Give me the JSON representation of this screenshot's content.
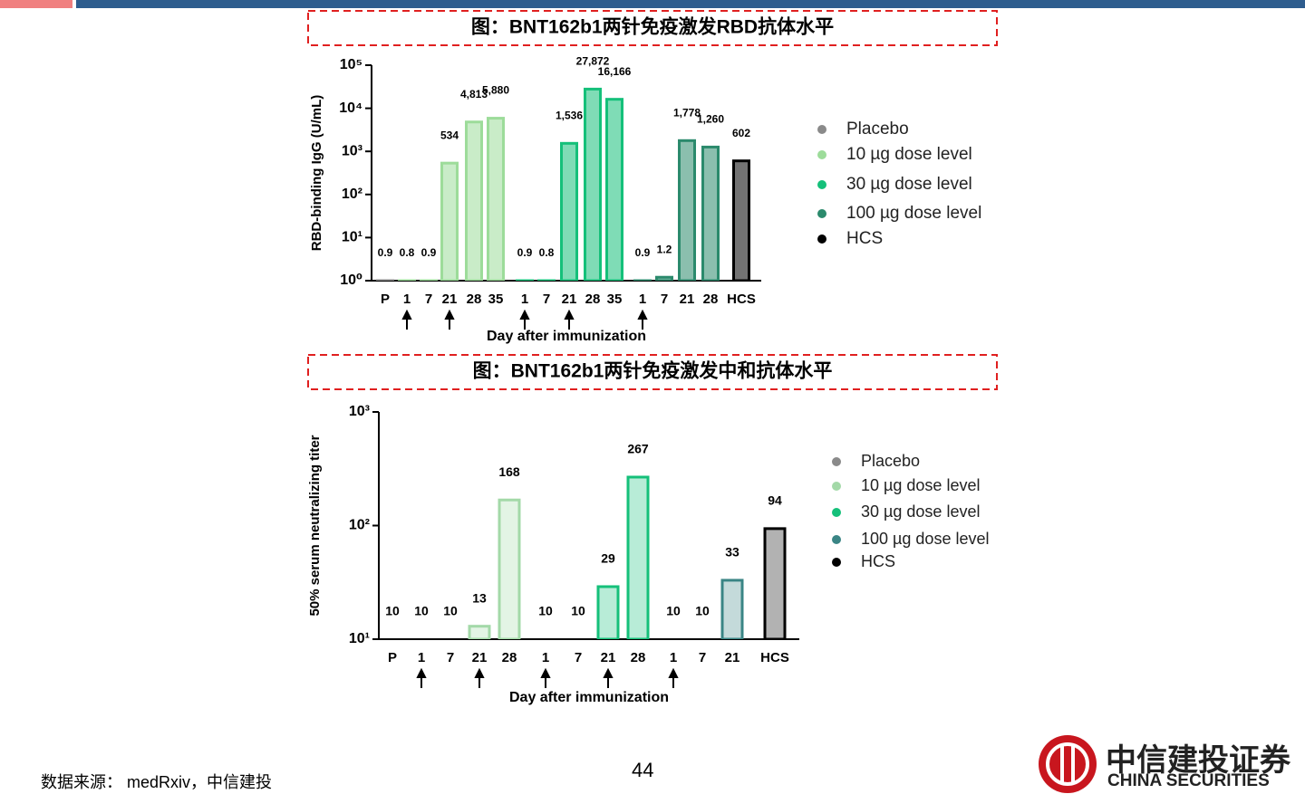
{
  "chart_data": [
    {
      "type": "bar",
      "title": "图：BNT162b1两针免疫激发RBD抗体水平",
      "y_label": "RBD-binding IgG (U/mL)",
      "x_label": "Day after immunization",
      "log": true,
      "ylim": [
        1,
        100000
      ],
      "yticks": [
        {
          "value": 1,
          "label": "10⁰"
        },
        {
          "value": 10,
          "label": "10¹"
        },
        {
          "value": 100,
          "label": "10²"
        },
        {
          "value": 1000,
          "label": "10³"
        },
        {
          "value": 10000,
          "label": "10⁴"
        },
        {
          "value": 100000,
          "label": "10⁵"
        }
      ],
      "categories": [
        "P",
        "1",
        "7",
        "21",
        "28",
        "35",
        "1",
        "7",
        "21",
        "28",
        "35",
        "1",
        "7",
        "21",
        "28",
        "HCS"
      ],
      "series": [
        {
          "name": "Placebo",
          "color": "#8a8a8a",
          "values": [
            0.9,
            null,
            null,
            null,
            null,
            null,
            null,
            null,
            null,
            null,
            null,
            null,
            null,
            null,
            null,
            null
          ]
        },
        {
          "name": "10 µg dose level",
          "color": "#9ddc9a",
          "values": [
            null,
            0.8,
            0.9,
            534,
            4813,
            5880,
            null,
            null,
            null,
            null,
            null,
            null,
            null,
            null,
            null,
            null
          ],
          "value_labels": [
            null,
            null,
            null,
            null,
            "4,813",
            "5,880",
            null,
            null,
            null,
            null,
            null,
            null,
            null,
            null,
            null,
            null
          ]
        },
        {
          "name": "30 µg dose level",
          "color": "#15c07a",
          "values": [
            null,
            null,
            null,
            null,
            null,
            null,
            0.9,
            0.8,
            1536,
            27872,
            16166,
            null,
            null,
            null,
            null,
            null
          ],
          "value_labels": [
            null,
            null,
            null,
            null,
            null,
            null,
            null,
            null,
            "1,536",
            "27,872",
            "16,166",
            null,
            null,
            null,
            null,
            null
          ]
        },
        {
          "name": "100 µg dose level",
          "color": "#2b8a6c",
          "values": [
            null,
            null,
            null,
            null,
            null,
            null,
            null,
            null,
            null,
            null,
            null,
            0.9,
            1.2,
            1778,
            1260,
            null
          ],
          "value_labels": [
            null,
            null,
            null,
            null,
            null,
            null,
            null,
            null,
            null,
            null,
            null,
            null,
            null,
            "1,778",
            "1,260",
            null
          ]
        },
        {
          "name": "HCS",
          "color": "#000000",
          "values": [
            null,
            null,
            null,
            null,
            null,
            null,
            null,
            null,
            null,
            null,
            null,
            null,
            null,
            null,
            null,
            602
          ]
        }
      ]
    },
    {
      "type": "bar",
      "title": "图：BNT162b1两针免疫激发中和抗体水平",
      "y_label": "50% serum neutralizing titer",
      "x_label": "Day after immunization",
      "log": true,
      "ylim": [
        10,
        1000
      ],
      "yticks": [
        {
          "value": 10,
          "label": "10¹"
        },
        {
          "value": 100,
          "label": "10²"
        },
        {
          "value": 1000,
          "label": "10³"
        }
      ],
      "categories": [
        "P",
        "1",
        "7",
        "21",
        "28",
        "1",
        "7",
        "21",
        "28",
        "1",
        "7",
        "21",
        "HCS"
      ],
      "series": [
        {
          "name": "Placebo",
          "color": "#8a8a8a",
          "values": [
            10,
            null,
            null,
            null,
            null,
            null,
            null,
            null,
            null,
            null,
            null,
            null,
            null
          ]
        },
        {
          "name": "10 µg dose level",
          "color": "#a3d9a8",
          "values": [
            null,
            10,
            10,
            13,
            168,
            null,
            null,
            null,
            null,
            null,
            null,
            null,
            null
          ]
        },
        {
          "name": "30 µg dose level",
          "color": "#15c07a",
          "values": [
            null,
            null,
            null,
            null,
            null,
            10,
            10,
            29,
            267,
            null,
            null,
            null,
            null
          ]
        },
        {
          "name": "100 µg dose level",
          "color": "#3a8585",
          "values": [
            null,
            null,
            null,
            null,
            null,
            null,
            null,
            null,
            null,
            10,
            10,
            33,
            null
          ]
        },
        {
          "name": "HCS",
          "color": "#000000",
          "values": [
            null,
            null,
            null,
            null,
            null,
            null,
            null,
            null,
            null,
            null,
            null,
            null,
            94
          ]
        }
      ]
    }
  ],
  "footer": {
    "source": "数据来源： medRxiv，中信建投",
    "page": "44",
    "logo_cn": "中信建投证券",
    "logo_en": "CHINA SECURITIES"
  }
}
